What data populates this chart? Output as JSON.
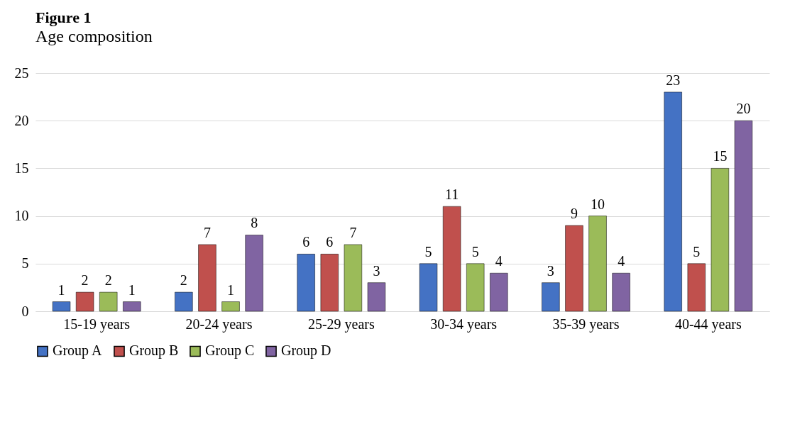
{
  "chart_data": {
    "type": "bar",
    "title": "Figure 1",
    "subtitle": "Age composition",
    "categories": [
      "15-19 years",
      "20-24 years",
      "25-29 years",
      "30-34 years",
      "35-39 years",
      "40-44 years"
    ],
    "series": [
      {
        "name": "Group A",
        "color": "#4472c4",
        "values": [
          1,
          2,
          6,
          5,
          3,
          23
        ]
      },
      {
        "name": "Group B",
        "color": "#c0504d",
        "values": [
          2,
          7,
          6,
          11,
          9,
          5
        ]
      },
      {
        "name": "Group C",
        "color": "#9bbb59",
        "values": [
          2,
          1,
          7,
          5,
          10,
          15
        ]
      },
      {
        "name": "Group D",
        "color": "#8064a2",
        "values": [
          1,
          8,
          3,
          4,
          4,
          20
        ]
      }
    ],
    "ylim": [
      0,
      25
    ],
    "yticks": [
      0,
      5,
      10,
      15,
      20,
      25
    ],
    "grid": "y",
    "legend": "bottom",
    "data_labels": true
  }
}
